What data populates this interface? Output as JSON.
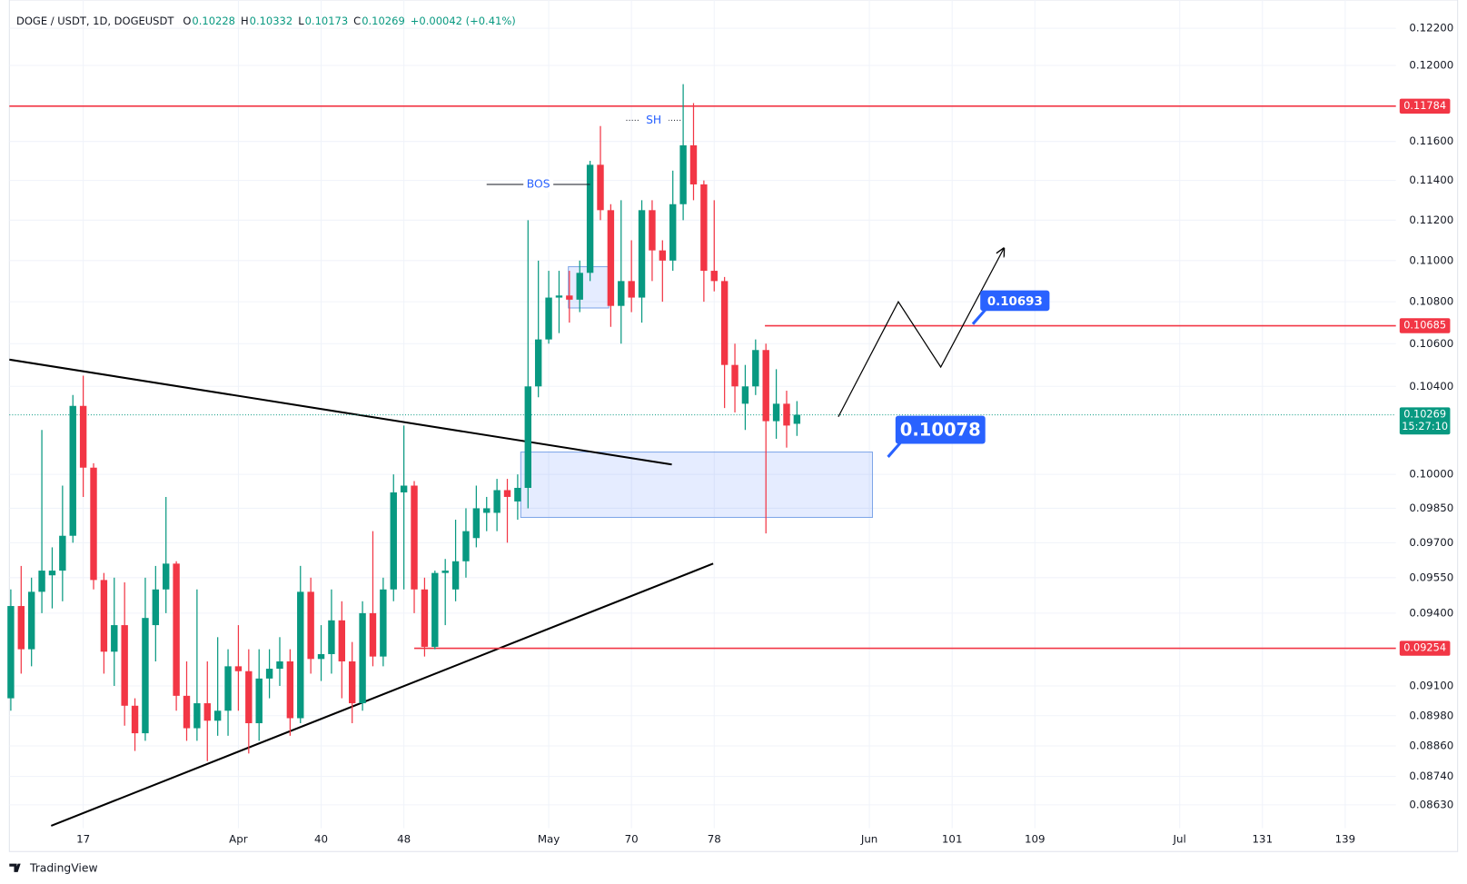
{
  "chart_data": {
    "type": "candlestick",
    "symbol": "DOGE / USDT, 1D, DOGEUSDT",
    "ohlc_labels": [
      "O",
      "H",
      "L",
      "C"
    ],
    "change": "+0.00042 (+0.41%)",
    "countdown": "15:27:10",
    "brand": "TradingView",
    "up_color": "#089981",
    "down_color": "#f23645",
    "log": true,
    "grid": true,
    "x": [
      10,
      11,
      12,
      13,
      14,
      15,
      16,
      17,
      18,
      19,
      20,
      21,
      22,
      23,
      24,
      25,
      26,
      27,
      28,
      29,
      30,
      31,
      32,
      33,
      34,
      35,
      36,
      37,
      38,
      39,
      40,
      41,
      42,
      43,
      44,
      45,
      46,
      47,
      48,
      49,
      50,
      51,
      52,
      53,
      54,
      55,
      56,
      57,
      58,
      59,
      60,
      61,
      62,
      63,
      64,
      65,
      66,
      67,
      68,
      69,
      70,
      71,
      72,
      73,
      74,
      75,
      76,
      77,
      78,
      79,
      80,
      81,
      82,
      83,
      84,
      85,
      86
    ],
    "open": [
      0.0905,
      0.0943,
      0.0925,
      0.0949,
      0.0956,
      0.0958,
      0.0973,
      0.1031,
      0.1003,
      0.0954,
      0.0924,
      0.0935,
      0.0902,
      0.0891,
      0.0935,
      0.095,
      0.0961,
      0.0906,
      0.0893,
      0.0903,
      0.0896,
      0.09,
      0.0918,
      0.0916,
      0.0895,
      0.0913,
      0.0917,
      0.092,
      0.0897,
      0.0949,
      0.0921,
      0.0923,
      0.0937,
      0.092,
      0.0903,
      0.094,
      0.0922,
      0.095,
      0.0992,
      0.0995,
      0.095,
      0.0926,
      0.0957,
      0.095,
      0.0962,
      0.0972,
      0.0983,
      0.0983,
      0.0993,
      0.0988,
      0.0994,
      0.104,
      0.1062,
      0.1082,
      0.1083,
      0.1081,
      0.1094,
      0.1148,
      0.1125,
      0.1078,
      0.109,
      0.1082,
      0.1125,
      0.1105,
      0.11,
      0.1128,
      0.1158,
      0.1138,
      0.1095,
      0.109,
      0.105,
      0.1032,
      0.104,
      0.1057,
      0.1024,
      0.1032,
      0.10228
    ],
    "high": [
      0.095,
      0.096,
      0.0955,
      0.102,
      0.0968,
      0.0995,
      0.1036,
      0.1045,
      0.1005,
      0.0957,
      0.0955,
      0.0953,
      0.0905,
      0.0955,
      0.096,
      0.099,
      0.0962,
      0.092,
      0.095,
      0.092,
      0.093,
      0.0925,
      0.0935,
      0.0925,
      0.0925,
      0.0925,
      0.093,
      0.0925,
      0.096,
      0.0955,
      0.0935,
      0.095,
      0.0945,
      0.0928,
      0.0945,
      0.0975,
      0.0955,
      0.1,
      0.1022,
      0.0997,
      0.0955,
      0.0958,
      0.0963,
      0.098,
      0.0985,
      0.0995,
      0.099,
      0.0998,
      0.0998,
      0.1,
      0.112,
      0.11,
      0.1095,
      0.1095,
      0.1095,
      0.11,
      0.115,
      0.1168,
      0.1128,
      0.113,
      0.111,
      0.113,
      0.113,
      0.111,
      0.1145,
      0.119,
      0.118,
      0.114,
      0.113,
      0.1092,
      0.106,
      0.105,
      0.1062,
      0.106,
      0.1048,
      0.1038,
      0.10332
    ],
    "low": [
      0.09,
      0.0915,
      0.0918,
      0.094,
      0.0942,
      0.0945,
      0.097,
      0.099,
      0.095,
      0.0915,
      0.091,
      0.0894,
      0.0884,
      0.0888,
      0.092,
      0.094,
      0.09,
      0.0888,
      0.0888,
      0.088,
      0.089,
      0.089,
      0.09,
      0.0883,
      0.0888,
      0.0905,
      0.091,
      0.089,
      0.0895,
      0.0915,
      0.0912,
      0.0915,
      0.0905,
      0.0895,
      0.09,
      0.0918,
      0.0918,
      0.0945,
      0.095,
      0.094,
      0.0922,
      0.0925,
      0.0935,
      0.0945,
      0.0955,
      0.0968,
      0.0975,
      0.0975,
      0.097,
      0.098,
      0.0985,
      0.1035,
      0.106,
      0.1065,
      0.107,
      0.1075,
      0.109,
      0.112,
      0.1068,
      0.106,
      0.1075,
      0.107,
      0.109,
      0.108,
      0.1095,
      0.112,
      0.113,
      0.108,
      0.1085,
      0.103,
      0.1028,
      0.102,
      0.1036,
      0.0974,
      0.1016,
      0.1012,
      0.10173
    ],
    "close": [
      0.0943,
      0.0925,
      0.0949,
      0.0958,
      0.0958,
      0.0973,
      0.1031,
      0.1003,
      0.0954,
      0.0924,
      0.0935,
      0.0902,
      0.0891,
      0.0938,
      0.095,
      0.0961,
      0.0906,
      0.0893,
      0.0903,
      0.0896,
      0.09,
      0.0918,
      0.0916,
      0.0895,
      0.0913,
      0.0917,
      0.092,
      0.0897,
      0.0949,
      0.0921,
      0.0923,
      0.0937,
      0.092,
      0.0903,
      0.094,
      0.0922,
      0.095,
      0.0992,
      0.0995,
      0.095,
      0.0926,
      0.0957,
      0.0958,
      0.0962,
      0.0975,
      0.0985,
      0.0985,
      0.0993,
      0.099,
      0.0994,
      0.104,
      0.1062,
      0.1082,
      0.1083,
      0.1081,
      0.1094,
      0.1148,
      0.1125,
      0.1078,
      0.109,
      0.1082,
      0.1125,
      0.1105,
      0.11,
      0.1128,
      0.1158,
      0.1138,
      0.1095,
      0.109,
      0.105,
      0.104,
      0.104,
      0.1057,
      0.1024,
      0.1032,
      0.1022,
      0.10269
    ],
    "xlim": [
      9.86,
      143.9
    ],
    "xticks": [
      17,
      {
        "value": 32,
        "label": "Apr"
      },
      40,
      48,
      {
        "value": 62,
        "label": "May"
      },
      70,
      78,
      {
        "value": 93,
        "label": "Jun"
      },
      101,
      109,
      {
        "value": 123,
        "label": "Jul"
      },
      131,
      139
    ],
    "ylim": [
      0.08541,
      0.12355
    ],
    "yticks": [
      {
        "value": 0.122,
        "label": "0.12200"
      },
      {
        "value": 0.12,
        "label": "0.12000"
      },
      {
        "value": 0.116,
        "label": "0.11600"
      },
      {
        "value": 0.114,
        "label": "0.11400"
      },
      {
        "value": 0.112,
        "label": "0.11200"
      },
      {
        "value": 0.11,
        "label": "0.11000"
      },
      {
        "value": 0.108,
        "label": "0.10800"
      },
      {
        "value": 0.106,
        "label": "0.10600"
      },
      {
        "value": 0.104,
        "label": "0.10400"
      },
      {
        "value": 0.1,
        "label": "0.10000"
      },
      {
        "value": 0.0985,
        "label": "0.09850"
      },
      {
        "value": 0.097,
        "label": "0.09700"
      },
      {
        "value": 0.0955,
        "label": "0.09550"
      },
      {
        "value": 0.094,
        "label": "0.09400"
      },
      {
        "value": 0.091,
        "label": "0.09100"
      },
      {
        "value": 0.0898,
        "label": "0.08980"
      },
      {
        "value": 0.0886,
        "label": "0.08860"
      },
      {
        "value": 0.0874,
        "label": "0.08740"
      },
      {
        "value": 0.0863,
        "label": "0.08630"
      }
    ],
    "hlines": [
      {
        "value": 0.11784,
        "start": 9.86,
        "color": "#f23645"
      },
      {
        "value": 0.10685,
        "start": 82.9,
        "color": "#f23645"
      },
      {
        "value": 0.09254,
        "start": 49.0,
        "color": "#f23645"
      }
    ],
    "zones": [
      {
        "x": [
          59.3,
          93.3
        ],
        "y": [
          0.0981,
          0.101
        ]
      },
      {
        "x": [
          63.9,
          67.8
        ],
        "y": [
          0.1077,
          0.1097
        ]
      }
    ],
    "trendlines": [
      {
        "x": [
          9.86,
          73.9
        ],
        "y": [
          0.10525,
          0.10044
        ]
      },
      {
        "x": [
          13.9,
          77.9
        ],
        "y": [
          0.0855,
          0.0961
        ]
      }
    ],
    "annotations": [
      {
        "text": "BOS",
        "x": [
          56.0,
          66.0
        ],
        "y": 0.1138
      },
      {
        "text": "SH",
        "x": [
          69.5,
          74.8
        ],
        "y": 0.1171
      }
    ],
    "projection": {
      "x": [
        90.0,
        95.8,
        99.9,
        106.0
      ],
      "y": [
        0.1026,
        0.108,
        0.1049,
        0.1106
      ]
    },
    "callouts": [
      {
        "value": 0.10693,
        "x": 103.0,
        "size": "small"
      },
      {
        "value": 0.10078,
        "x": 94.8,
        "size": "large"
      }
    ]
  }
}
